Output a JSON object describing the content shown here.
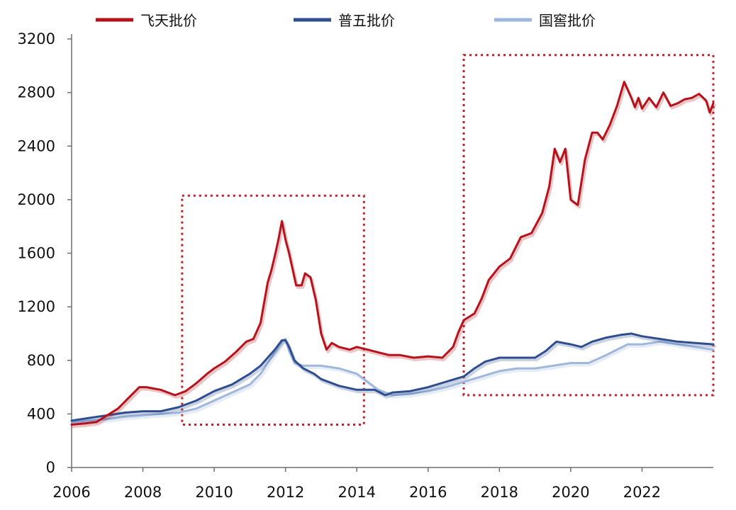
{
  "chart_data": {
    "type": "line",
    "title": "",
    "xlabel": "",
    "ylabel": "",
    "xlim": [
      2006,
      2024
    ],
    "ylim": [
      0,
      3200
    ],
    "xticks": [
      "2006",
      "2008",
      "2010",
      "2012",
      "2014",
      "2016",
      "2018",
      "2020",
      "2022"
    ],
    "yticks": [
      "0",
      "400",
      "800",
      "1200",
      "1600",
      "2000",
      "2400",
      "2800",
      "3200"
    ],
    "grid": false,
    "legend_position": "top",
    "highlight_boxes": [
      {
        "x": [
          2009.1,
          2014.2
        ],
        "y": [
          320,
          2030
        ]
      },
      {
        "x": [
          2017.0,
          2024.0
        ],
        "y": [
          540,
          3080
        ]
      }
    ],
    "series": [
      {
        "name": "飞天批价",
        "color": "#b5121b",
        "x": [
          2006.0,
          2006.4,
          2006.7,
          2007.0,
          2007.3,
          2007.6,
          2007.9,
          2008.1,
          2008.3,
          2008.5,
          2008.7,
          2008.9,
          2009.2,
          2009.5,
          2009.8,
          2010.0,
          2010.3,
          2010.6,
          2010.9,
          2011.1,
          2011.3,
          2011.5,
          2011.6,
          2011.7,
          2011.8,
          2011.9,
          2012.0,
          2012.1,
          2012.2,
          2012.3,
          2012.45,
          2012.55,
          2012.7,
          2012.85,
          2013.0,
          2013.15,
          2013.3,
          2013.5,
          2013.8,
          2014.0,
          2014.3,
          2014.6,
          2014.9,
          2015.2,
          2015.6,
          2016.0,
          2016.4,
          2016.7,
          2016.85,
          2017.0,
          2017.3,
          2017.5,
          2017.7,
          2018.0,
          2018.3,
          2018.6,
          2018.9,
          2019.2,
          2019.4,
          2019.55,
          2019.7,
          2019.85,
          2020.0,
          2020.2,
          2020.4,
          2020.6,
          2020.75,
          2020.9,
          2021.1,
          2021.3,
          2021.5,
          2021.6,
          2021.7,
          2021.8,
          2021.9,
          2022.0,
          2022.2,
          2022.4,
          2022.6,
          2022.8,
          2023.0,
          2023.2,
          2023.4,
          2023.6,
          2023.8,
          2023.9,
          2024.0
        ],
        "values": [
          320,
          330,
          340,
          390,
          440,
          520,
          600,
          600,
          590,
          580,
          560,
          540,
          570,
          630,
          700,
          740,
          790,
          860,
          940,
          960,
          1080,
          1380,
          1470,
          1580,
          1700,
          1840,
          1700,
          1600,
          1480,
          1360,
          1360,
          1450,
          1420,
          1250,
          1000,
          880,
          930,
          900,
          880,
          900,
          880,
          860,
          840,
          840,
          820,
          830,
          820,
          900,
          1010,
          1100,
          1150,
          1260,
          1400,
          1500,
          1560,
          1720,
          1750,
          1900,
          2100,
          2380,
          2280,
          2380,
          2000,
          1960,
          2300,
          2500,
          2500,
          2450,
          2560,
          2700,
          2880,
          2820,
          2760,
          2690,
          2760,
          2680,
          2760,
          2690,
          2800,
          2700,
          2720,
          2750,
          2760,
          2790,
          2740,
          2650,
          2720
        ]
      },
      {
        "name": "普五批价",
        "color": "#2e4e8f",
        "x": [
          2006.0,
          2006.5,
          2007.0,
          2007.5,
          2008.0,
          2008.5,
          2009.0,
          2009.5,
          2010.0,
          2010.5,
          2011.0,
          2011.3,
          2011.5,
          2011.7,
          2011.9,
          2012.0,
          2012.1,
          2012.25,
          2012.5,
          2012.8,
          2013.0,
          2013.5,
          2014.0,
          2014.5,
          2014.8,
          2015.0,
          2015.5,
          2016.0,
          2016.5,
          2017.0,
          2017.3,
          2017.6,
          2018.0,
          2018.5,
          2019.0,
          2019.3,
          2019.6,
          2020.0,
          2020.3,
          2020.6,
          2021.0,
          2021.4,
          2021.7,
          2022.0,
          2022.5,
          2023.0,
          2023.5,
          2024.0
        ],
        "values": [
          350,
          370,
          390,
          410,
          420,
          420,
          450,
          500,
          570,
          620,
          700,
          760,
          820,
          880,
          950,
          950,
          900,
          800,
          740,
          700,
          660,
          610,
          580,
          580,
          540,
          560,
          570,
          600,
          640,
          680,
          740,
          790,
          820,
          820,
          820,
          870,
          940,
          920,
          900,
          940,
          970,
          990,
          1000,
          980,
          960,
          940,
          930,
          920
        ]
      },
      {
        "name": "国窖批价",
        "color": "#9fb7dc",
        "x": [
          2006.0,
          2006.5,
          2007.0,
          2007.5,
          2008.0,
          2008.5,
          2009.0,
          2009.5,
          2010.0,
          2010.5,
          2011.0,
          2011.3,
          2011.5,
          2011.7,
          2011.9,
          2012.0,
          2012.1,
          2012.25,
          2012.5,
          2012.8,
          2013.0,
          2013.5,
          2014.0,
          2014.3,
          2014.6,
          2015.0,
          2015.5,
          2016.0,
          2016.5,
          2017.0,
          2017.5,
          2018.0,
          2018.5,
          2019.0,
          2019.5,
          2020.0,
          2020.5,
          2021.0,
          2021.3,
          2021.6,
          2022.0,
          2022.5,
          2023.0,
          2023.5,
          2024.0
        ],
        "values": [
          340,
          350,
          360,
          380,
          390,
          400,
          410,
          440,
          500,
          560,
          620,
          700,
          780,
          860,
          940,
          960,
          870,
          780,
          760,
          760,
          760,
          740,
          700,
          640,
          580,
          540,
          550,
          570,
          600,
          640,
          680,
          720,
          740,
          740,
          760,
          780,
          780,
          840,
          880,
          920,
          920,
          940,
          920,
          900,
          880
        ]
      }
    ]
  }
}
